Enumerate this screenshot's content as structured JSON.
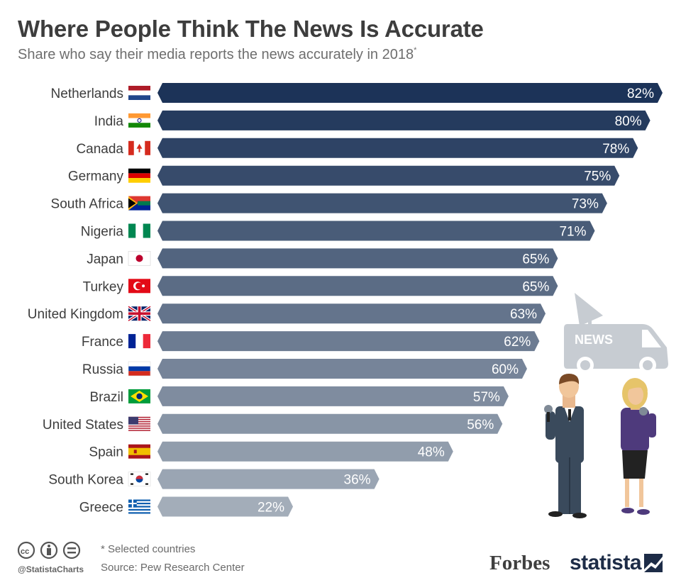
{
  "chart_data": {
    "type": "bar",
    "orientation": "horizontal",
    "title": "Where People Think The News Is Accurate",
    "subtitle": "Share who say their media reports the news accurately in 2018",
    "subtitle_mark": "*",
    "categories": [
      "Netherlands",
      "India",
      "Canada",
      "Germany",
      "South Africa",
      "Nigeria",
      "Japan",
      "Turkey",
      "United Kingdom",
      "France",
      "Russia",
      "Brazil",
      "United States",
      "Spain",
      "South Korea",
      "Greece"
    ],
    "values": [
      82,
      80,
      78,
      75,
      73,
      71,
      65,
      65,
      63,
      62,
      60,
      57,
      56,
      48,
      36,
      22
    ],
    "value_labels": [
      "82%",
      "80%",
      "78%",
      "75%",
      "73%",
      "71%",
      "65%",
      "65%",
      "63%",
      "62%",
      "60%",
      "57%",
      "56%",
      "48%",
      "36%",
      "22%"
    ],
    "unit": "%",
    "xlim": [
      0,
      82
    ],
    "grid": false,
    "legend": "none",
    "bar_color_start": "#1c3358",
    "bar_color_end": "#a3adb9",
    "flags": [
      "netherlands-flag",
      "india-flag",
      "canada-flag",
      "germany-flag",
      "south-africa-flag",
      "nigeria-flag",
      "japan-flag",
      "turkey-flag",
      "united-kingdom-flag",
      "france-flag",
      "russia-flag",
      "brazil-flag",
      "united-states-flag",
      "spain-flag",
      "south-korea-flag",
      "greece-flag"
    ]
  },
  "illustration": {
    "van_text": "NEWS",
    "icon": "news-van-and-reporters-illustration"
  },
  "footer": {
    "note": "* Selected countries",
    "source": "Source: Pew Research Center",
    "handle": "@StatistaCharts",
    "forbes": "Forbes",
    "statista": "statista",
    "license_icons": [
      "cc-icon",
      "by-icon",
      "nd-icon"
    ]
  }
}
